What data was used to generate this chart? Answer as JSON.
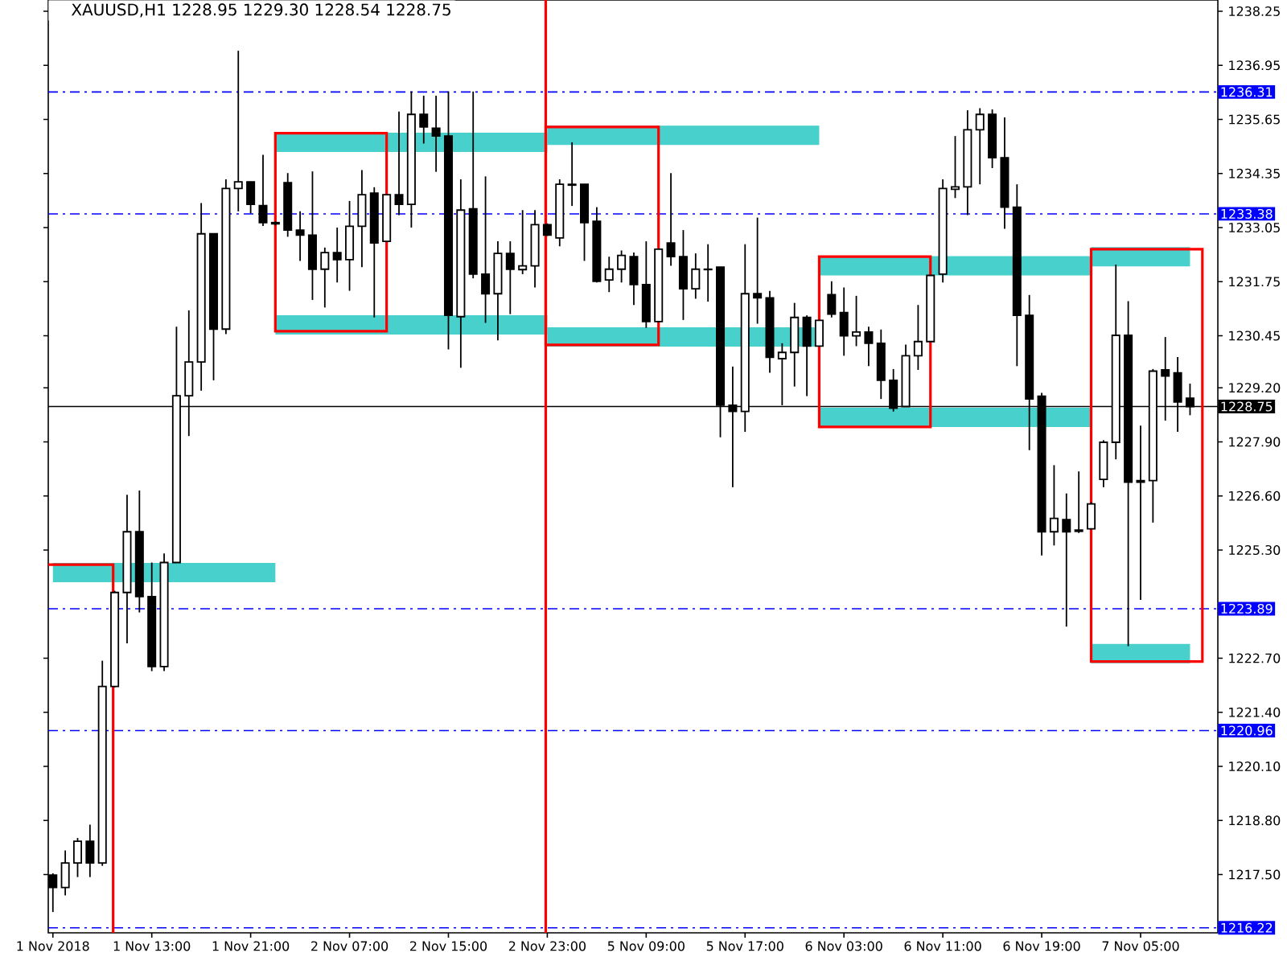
{
  "chart_data": {
    "type": "candlestick",
    "title": "XAUUSD,H1  1228.95 1229.30 1228.54 1228.75",
    "categories": [
      "1 Nov 2018",
      null,
      null,
      null,
      null,
      null,
      null,
      null,
      "1 Nov 13:00",
      null,
      null,
      null,
      null,
      null,
      null,
      null,
      "1 Nov 21:00",
      null,
      null,
      null,
      null,
      null,
      null,
      null,
      "2 Nov 07:00",
      null,
      null,
      null,
      null,
      null,
      null,
      null,
      "2 Nov 15:00",
      null,
      null,
      null,
      null,
      null,
      null,
      null,
      "2 Nov 23:00",
      null,
      null,
      null,
      null,
      null,
      null,
      null,
      "5 Nov 09:00",
      null,
      null,
      null,
      null,
      null,
      null,
      null,
      "5 Nov 17:00",
      null,
      null,
      null,
      null,
      null,
      null,
      null,
      "6 Nov 03:00",
      null,
      null,
      null,
      null,
      null,
      null,
      null,
      "6 Nov 11:00",
      null,
      null,
      null,
      null,
      null,
      null,
      null,
      "6 Nov 19:00",
      null,
      null,
      null,
      null,
      null,
      null,
      null,
      "7 Nov 05:00",
      null,
      null,
      null,
      null
    ],
    "ohlc": [
      [
        1217.49,
        1217.53,
        1216.6,
        1217.19
      ],
      [
        1217.19,
        1218.08,
        1217.0,
        1217.78
      ],
      [
        1217.78,
        1218.38,
        1217.44,
        1218.3
      ],
      [
        1218.3,
        1218.7,
        1217.44,
        1217.78
      ],
      [
        1217.78,
        1222.64,
        1217.71,
        1222.02
      ],
      [
        1222.02,
        1224.32,
        1222.0,
        1224.28
      ],
      [
        1224.28,
        1226.63,
        1223.06,
        1225.74
      ],
      [
        1225.74,
        1226.73,
        1223.8,
        1224.18
      ],
      [
        1224.18,
        1225.0,
        1222.39,
        1222.5
      ],
      [
        1222.5,
        1225.22,
        1222.39,
        1225.0
      ],
      [
        1225.0,
        1230.67,
        1225.0,
        1229.01
      ],
      [
        1229.01,
        1231.06,
        1228.04,
        1229.82
      ],
      [
        1229.82,
        1233.64,
        1229.13,
        1232.9
      ],
      [
        1232.9,
        1232.9,
        1229.38,
        1230.61
      ],
      [
        1230.61,
        1234.21,
        1230.49,
        1233.99
      ],
      [
        1233.99,
        1237.3,
        1233.44,
        1234.15
      ],
      [
        1234.15,
        1234.15,
        1233.39,
        1233.61
      ],
      [
        1233.58,
        1234.8,
        1233.09,
        1233.17
      ],
      [
        1233.17,
        1233.2,
        1233.1,
        1233.14
      ],
      [
        1234.13,
        1234.36,
        1232.83,
        1232.99
      ],
      [
        1232.99,
        1233.44,
        1232.25,
        1232.87
      ],
      [
        1232.87,
        1234.4,
        1231.31,
        1232.05
      ],
      [
        1232.05,
        1232.57,
        1231.13,
        1232.45
      ],
      [
        1232.45,
        1233.05,
        1231.73,
        1232.28
      ],
      [
        1232.28,
        1233.69,
        1231.53,
        1233.08
      ],
      [
        1233.08,
        1234.43,
        1232.1,
        1233.84
      ],
      [
        1233.88,
        1234.02,
        1230.89,
        1232.68
      ],
      [
        1232.72,
        1233.84,
        1232.72,
        1233.84
      ],
      [
        1233.84,
        1235.84,
        1233.35,
        1233.61
      ],
      [
        1233.61,
        1236.32,
        1233.05,
        1235.77
      ],
      [
        1235.77,
        1236.22,
        1235.07,
        1235.47
      ],
      [
        1235.44,
        1236.22,
        1234.39,
        1235.25
      ],
      [
        1235.25,
        1236.32,
        1230.12,
        1230.94
      ],
      [
        1230.91,
        1234.21,
        1229.68,
        1233.47
      ],
      [
        1233.5,
        1236.32,
        1231.83,
        1231.93
      ],
      [
        1231.93,
        1234.28,
        1230.76,
        1231.46
      ],
      [
        1231.46,
        1232.72,
        1230.34,
        1232.43
      ],
      [
        1232.43,
        1232.72,
        1230.97,
        1232.05
      ],
      [
        1232.04,
        1233.47,
        1231.93,
        1232.13
      ],
      [
        1232.13,
        1233.47,
        1231.61,
        1233.12
      ],
      [
        1233.12,
        1233.15,
        1232.85,
        1232.87
      ],
      [
        1232.8,
        1234.21,
        1232.6,
        1234.09
      ],
      [
        1234.09,
        1235.1,
        1233.57,
        1234.07
      ],
      [
        1234.09,
        1234.09,
        1232.25,
        1233.17
      ],
      [
        1233.2,
        1233.54,
        1231.73,
        1231.76
      ],
      [
        1231.79,
        1232.35,
        1231.5,
        1232.05
      ],
      [
        1232.05,
        1232.5,
        1231.73,
        1232.38
      ],
      [
        1232.35,
        1232.45,
        1231.19,
        1231.68
      ],
      [
        1231.68,
        1232.72,
        1230.64,
        1230.79
      ],
      [
        1230.79,
        1232.53,
        1230.79,
        1232.53
      ],
      [
        1232.68,
        1234.36,
        1232.13,
        1232.35
      ],
      [
        1232.35,
        1232.99,
        1230.83,
        1231.58
      ],
      [
        1231.58,
        1232.43,
        1231.34,
        1232.05
      ],
      [
        1232.04,
        1232.65,
        1231.27,
        1232.05
      ],
      [
        1232.1,
        1232.1,
        1228.01,
        1228.78
      ],
      [
        1228.78,
        1229.71,
        1226.81,
        1228.63
      ],
      [
        1228.63,
        1232.65,
        1228.14,
        1231.46
      ],
      [
        1231.46,
        1233.29,
        1230.74,
        1231.36
      ],
      [
        1231.36,
        1231.53,
        1229.56,
        1229.93
      ],
      [
        1229.9,
        1230.27,
        1228.78,
        1230.05
      ],
      [
        1230.05,
        1231.24,
        1229.23,
        1230.89
      ],
      [
        1230.89,
        1230.94,
        1229.0,
        1230.2
      ],
      [
        1230.2,
        1230.82,
        1230.2,
        1230.82
      ],
      [
        1231.44,
        1231.76,
        1230.89,
        1230.97
      ],
      [
        1231.01,
        1231.61,
        1229.97,
        1230.45
      ],
      [
        1230.45,
        1231.41,
        1230.2,
        1230.54
      ],
      [
        1230.54,
        1230.67,
        1229.72,
        1230.27
      ],
      [
        1230.27,
        1230.6,
        1228.93,
        1229.38
      ],
      [
        1229.38,
        1229.65,
        1228.63,
        1228.71
      ],
      [
        1228.75,
        1230.24,
        1228.75,
        1229.97
      ],
      [
        1229.97,
        1231.19,
        1229.63,
        1230.31
      ],
      [
        1230.31,
        1231.9,
        1230.31,
        1231.9
      ],
      [
        1231.93,
        1234.21,
        1231.73,
        1233.99
      ],
      [
        1233.97,
        1235.25,
        1233.76,
        1234.03
      ],
      [
        1234.03,
        1235.87,
        1233.35,
        1235.4
      ],
      [
        1235.4,
        1235.92,
        1234.09,
        1235.77
      ],
      [
        1235.77,
        1235.89,
        1234.48,
        1234.73
      ],
      [
        1234.73,
        1235.7,
        1233.02,
        1233.54
      ],
      [
        1233.54,
        1234.09,
        1229.72,
        1230.94
      ],
      [
        1230.94,
        1231.43,
        1227.7,
        1228.93
      ],
      [
        1229.0,
        1229.08,
        1225.17,
        1225.74
      ],
      [
        1225.74,
        1227.34,
        1225.41,
        1226.06
      ],
      [
        1226.03,
        1226.66,
        1223.46,
        1225.74
      ],
      [
        1225.78,
        1227.19,
        1225.71,
        1225.75
      ],
      [
        1225.81,
        1226.45,
        1225.81,
        1226.41
      ],
      [
        1227.0,
        1227.94,
        1226.81,
        1227.89
      ],
      [
        1227.89,
        1232.16,
        1227.48,
        1230.46
      ],
      [
        1230.46,
        1231.28,
        1222.99,
        1226.93
      ],
      [
        1226.97,
        1228.29,
        1224.1,
        1226.93
      ],
      [
        1226.97,
        1229.65,
        1225.96,
        1229.6
      ],
      [
        1229.63,
        1230.42,
        1228.41,
        1229.48
      ],
      [
        1229.56,
        1229.94,
        1228.14,
        1228.86
      ],
      [
        1228.95,
        1229.3,
        1228.54,
        1228.75
      ]
    ],
    "series": [
      {
        "type": "line",
        "color": "#48d1cc",
        "values": [
          1224.76,
          1224.76,
          1224.76,
          1224.76,
          1224.76,
          1224.76,
          1224.76,
          1224.76,
          1224.76,
          1224.76,
          1224.76,
          1224.76,
          1224.76,
          1224.76,
          1224.76,
          1224.76,
          1224.76,
          1224.76,
          1224.76,
          null,
          null,
          null,
          null,
          null,
          null,
          null,
          null,
          null,
          null,
          null,
          null,
          null,
          null,
          null,
          null,
          null,
          null,
          null,
          null,
          null,
          null,
          null,
          null,
          null,
          null,
          null,
          null,
          null,
          null,
          null,
          null,
          null,
          null,
          null,
          null,
          null,
          null,
          null,
          null,
          null,
          null,
          null,
          null,
          null,
          null,
          null,
          null,
          null,
          null,
          null,
          null,
          null,
          null,
          null,
          null,
          null,
          null,
          null,
          null,
          null,
          null,
          null,
          null,
          null,
          null,
          null,
          null,
          null,
          null,
          null,
          null,
          null,
          null
        ]
      },
      {
        "type": "line",
        "color": "#48d1cc",
        "values": [
          null,
          null,
          null,
          null,
          null,
          null,
          null,
          null,
          null,
          null,
          null,
          null,
          null,
          null,
          null,
          null,
          null,
          null,
          1235.1,
          1235.1,
          1235.1,
          1235.1,
          1235.1,
          1235.1,
          1235.1,
          1235.1,
          1235.1,
          1235.1,
          1235.1,
          1235.1,
          1235.1,
          1235.1,
          1235.1,
          1235.1,
          1235.1,
          1235.1,
          1235.1,
          1235.1,
          1235.1,
          1235.1,
          1235.1,
          null,
          null,
          null,
          null,
          null,
          null,
          null,
          null,
          null,
          null,
          null,
          null,
          null,
          null,
          null,
          null,
          null,
          null,
          null,
          null,
          null,
          null,
          null,
          null,
          null,
          null,
          null,
          null,
          null,
          null,
          null,
          null,
          null,
          null,
          null,
          null,
          null,
          null,
          null,
          null,
          null,
          null,
          null,
          null,
          null,
          null,
          null,
          null,
          null,
          null,
          null,
          null
        ]
      },
      {
        "type": "line",
        "color": "#48d1cc",
        "values": [
          null,
          null,
          null,
          null,
          null,
          null,
          null,
          null,
          null,
          null,
          null,
          null,
          null,
          null,
          null,
          null,
          null,
          null,
          1230.71,
          1230.71,
          1230.71,
          1230.71,
          1230.71,
          1230.71,
          1230.71,
          1230.71,
          1230.71,
          1230.71,
          1230.71,
          1230.71,
          1230.71,
          1230.71,
          1230.71,
          1230.71,
          1230.71,
          1230.71,
          1230.71,
          1230.71,
          1230.71,
          1230.71,
          1230.71,
          null,
          null,
          null,
          null,
          null,
          null,
          null,
          null,
          null,
          null,
          null,
          null,
          null,
          null,
          null,
          null,
          null,
          null,
          null,
          null,
          null,
          null,
          null,
          null,
          null,
          null,
          null,
          null,
          null,
          null,
          null,
          null,
          null,
          null,
          null,
          null,
          null,
          null,
          null,
          null,
          null,
          null,
          null,
          null,
          null,
          null,
          null,
          null,
          null,
          null,
          null,
          null
        ]
      },
      {
        "type": "line",
        "color": "#48d1cc",
        "values": [
          null,
          null,
          null,
          null,
          null,
          null,
          null,
          null,
          null,
          null,
          null,
          null,
          null,
          null,
          null,
          null,
          null,
          null,
          null,
          null,
          null,
          null,
          null,
          null,
          null,
          null,
          null,
          null,
          null,
          null,
          null,
          null,
          null,
          null,
          null,
          null,
          null,
          null,
          null,
          null,
          1235.27,
          1235.27,
          1235.27,
          1235.27,
          1235.27,
          1235.27,
          1235.27,
          1235.27,
          1235.27,
          1235.27,
          1235.27,
          1235.27,
          1235.27,
          1235.27,
          1235.27,
          1235.27,
          1235.27,
          1235.27,
          1235.27,
          1235.27,
          1235.27,
          1235.27,
          1235.27,
          null,
          null,
          null,
          null,
          null,
          null,
          null,
          null,
          null,
          null,
          null,
          null,
          null,
          null,
          null,
          null,
          null,
          null,
          null,
          null,
          null,
          null,
          null,
          null,
          null,
          null,
          null,
          null,
          null,
          null
        ]
      },
      {
        "type": "line",
        "color": "#48d1cc",
        "values": [
          null,
          null,
          null,
          null,
          null,
          null,
          null,
          null,
          null,
          null,
          null,
          null,
          null,
          null,
          null,
          null,
          null,
          null,
          null,
          null,
          null,
          null,
          null,
          null,
          null,
          null,
          null,
          null,
          null,
          null,
          null,
          null,
          null,
          null,
          null,
          null,
          null,
          null,
          null,
          null,
          1230.42,
          1230.42,
          1230.42,
          1230.42,
          1230.42,
          1230.42,
          1230.42,
          1230.42,
          1230.42,
          1230.42,
          1230.42,
          1230.42,
          1230.42,
          1230.42,
          1230.42,
          1230.42,
          1230.42,
          1230.42,
          1230.42,
          1230.42,
          1230.42,
          1230.42,
          1230.42,
          null,
          null,
          null,
          null,
          null,
          null,
          null,
          null,
          null,
          null,
          null,
          null,
          null,
          null,
          null,
          null,
          null,
          null,
          null,
          null,
          null,
          null,
          null,
          null,
          null,
          null,
          null,
          null,
          null,
          null
        ]
      },
      {
        "type": "line",
        "color": "#48d1cc",
        "values": [
          null,
          null,
          null,
          null,
          null,
          null,
          null,
          null,
          null,
          null,
          null,
          null,
          null,
          null,
          null,
          null,
          null,
          null,
          null,
          null,
          null,
          null,
          null,
          null,
          null,
          null,
          null,
          null,
          null,
          null,
          null,
          null,
          null,
          null,
          null,
          null,
          null,
          null,
          null,
          null,
          null,
          null,
          null,
          null,
          null,
          null,
          null,
          null,
          null,
          null,
          null,
          null,
          null,
          null,
          null,
          null,
          null,
          null,
          null,
          null,
          null,
          null,
          1232.13,
          1232.13,
          1232.13,
          1232.13,
          1232.13,
          1232.13,
          1232.13,
          1232.13,
          1232.13,
          1232.13,
          1232.13,
          1232.13,
          1232.13,
          1232.13,
          1232.13,
          1232.13,
          1232.13,
          1232.13,
          1232.13,
          1232.13,
          1232.13,
          1232.13,
          1232.13,
          null,
          null,
          null,
          null,
          null,
          null,
          null,
          null
        ]
      },
      {
        "type": "line",
        "color": "#48d1cc",
        "values": [
          null,
          null,
          null,
          null,
          null,
          null,
          null,
          null,
          null,
          null,
          null,
          null,
          null,
          null,
          null,
          null,
          null,
          null,
          null,
          null,
          null,
          null,
          null,
          null,
          null,
          null,
          null,
          null,
          null,
          null,
          null,
          null,
          null,
          null,
          null,
          null,
          null,
          null,
          null,
          null,
          null,
          null,
          null,
          null,
          null,
          null,
          null,
          null,
          null,
          null,
          null,
          null,
          null,
          null,
          null,
          null,
          null,
          null,
          null,
          null,
          null,
          null,
          1228.49,
          1228.49,
          1228.49,
          1228.49,
          1228.49,
          1228.49,
          1228.49,
          1228.49,
          1228.49,
          1228.49,
          1228.49,
          1228.49,
          1228.49,
          1228.49,
          1228.49,
          1228.49,
          1228.49,
          1228.49,
          1228.49,
          1228.49,
          1228.49,
          1228.49,
          1228.49,
          null,
          null,
          null,
          null,
          null,
          null,
          null,
          null
        ]
      },
      {
        "type": "line",
        "color": "#48d1cc",
        "values": [
          null,
          null,
          null,
          null,
          null,
          null,
          null,
          null,
          null,
          null,
          null,
          null,
          null,
          null,
          null,
          null,
          null,
          null,
          null,
          null,
          null,
          null,
          null,
          null,
          null,
          null,
          null,
          null,
          null,
          null,
          null,
          null,
          null,
          null,
          null,
          null,
          null,
          null,
          null,
          null,
          null,
          null,
          null,
          null,
          null,
          null,
          null,
          null,
          null,
          null,
          null,
          null,
          null,
          null,
          null,
          null,
          null,
          null,
          null,
          null,
          null,
          null,
          null,
          null,
          null,
          null,
          null,
          null,
          null,
          null,
          null,
          null,
          null,
          null,
          null,
          null,
          null,
          null,
          null,
          null,
          null,
          null,
          null,
          null,
          1232.35,
          1232.35,
          1232.35,
          1232.35,
          1232.35,
          1232.35,
          1232.35,
          1232.35,
          1232.35
        ]
      },
      {
        "type": "line",
        "color": "#48d1cc",
        "values": [
          null,
          null,
          null,
          null,
          null,
          null,
          null,
          null,
          null,
          null,
          null,
          null,
          null,
          null,
          null,
          null,
          null,
          null,
          null,
          null,
          null,
          null,
          null,
          null,
          null,
          null,
          null,
          null,
          null,
          null,
          null,
          null,
          null,
          null,
          null,
          null,
          null,
          null,
          null,
          null,
          null,
          null,
          null,
          null,
          null,
          null,
          null,
          null,
          null,
          null,
          null,
          null,
          null,
          null,
          null,
          null,
          null,
          null,
          null,
          null,
          null,
          null,
          null,
          null,
          null,
          null,
          null,
          null,
          null,
          null,
          null,
          null,
          null,
          null,
          null,
          null,
          null,
          null,
          null,
          null,
          null,
          null,
          null,
          null,
          1222.81,
          1222.81,
          1222.81,
          1222.81,
          1222.81,
          1222.81,
          1222.81,
          1222.81,
          1222.81
        ]
      }
    ],
    "ylim": [
      1216.1,
      1238.52
    ],
    "yticks": [
      1238.25,
      1236.95,
      1235.65,
      1234.35,
      1233.05,
      1231.75,
      1230.45,
      {
        "value": 1229.2,
        "label": "1229.20"
      },
      {
        "value": 1227.9,
        "label": "1227.90"
      },
      {
        "value": 1226.6,
        "label": "1226.60"
      },
      {
        "value": 1225.3,
        "label": "1225.30"
      },
      {
        "value": 1222.7,
        "label": "1222.70"
      },
      {
        "value": 1221.4,
        "label": "1221.40"
      },
      {
        "value": 1220.1,
        "label": "1220.10"
      },
      {
        "value": 1218.8,
        "label": "1218.80"
      },
      {
        "value": 1217.5,
        "label": "1217.50"
      }
    ],
    "ref_lines": [
      {
        "axis": "y",
        "value": 1236.31,
        "label": "1236.31",
        "color": "#0000ff",
        "line_style": "dashed"
      },
      {
        "axis": "y",
        "value": 1233.38,
        "label": "1233.38",
        "color": "#0000ff",
        "line_style": "dashed"
      },
      {
        "axis": "y",
        "value": 1223.89,
        "label": "1223.89",
        "color": "#0000ff",
        "line_style": "dashed"
      },
      {
        "axis": "y",
        "value": 1220.96,
        "label": "1220.96",
        "color": "#0000ff",
        "line_style": "dashed"
      },
      {
        "axis": "y",
        "value": 1216.22,
        "label": "1216.22",
        "color": "#0000ff",
        "line_style": "dashed"
      },
      {
        "axis": "y",
        "value": 1228.75,
        "label": "1228.75",
        "color": "#000000",
        "line_style": "solid"
      }
    ]
  }
}
